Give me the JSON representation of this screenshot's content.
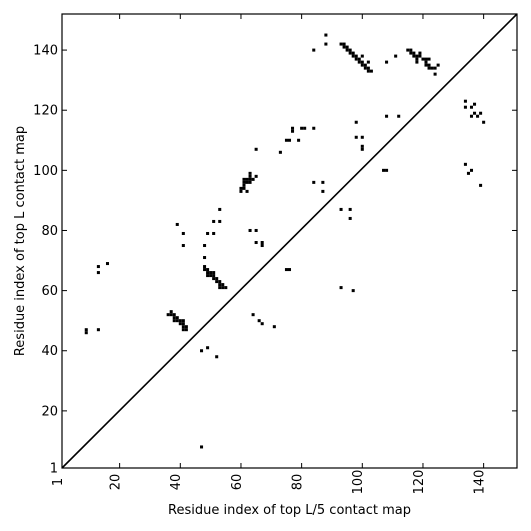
{
  "chart_data": {
    "type": "scatter",
    "xlabel": "Residue index of top L/5 contact map",
    "ylabel": "Residue index of top L contact map",
    "xlim": [
      1,
      151
    ],
    "ylim": [
      1,
      152
    ],
    "xticks": [
      "1",
      "20",
      "40",
      "60",
      "80",
      "100",
      "120",
      "140"
    ],
    "yticks": [
      "1",
      "20",
      "40",
      "60",
      "80",
      "100",
      "120",
      "140"
    ],
    "tick_values": [
      1,
      20,
      40,
      60,
      80,
      100,
      120,
      140
    ],
    "diagonal_line": {
      "from": [
        1,
        1
      ],
      "to": [
        151,
        152
      ]
    },
    "marker_color": "#000000",
    "points": [
      [
        47,
        8
      ],
      [
        9,
        46
      ],
      [
        9,
        47
      ],
      [
        13,
        47
      ],
      [
        13,
        66
      ],
      [
        13,
        68
      ],
      [
        16,
        69
      ],
      [
        36,
        52
      ],
      [
        37,
        52
      ],
      [
        37,
        53
      ],
      [
        38,
        52
      ],
      [
        38,
        51
      ],
      [
        38,
        50
      ],
      [
        39,
        50
      ],
      [
        39,
        51
      ],
      [
        40,
        50
      ],
      [
        40,
        49
      ],
      [
        41,
        49
      ],
      [
        41,
        50
      ],
      [
        41,
        48
      ],
      [
        41,
        47
      ],
      [
        42,
        47
      ],
      [
        42,
        48
      ],
      [
        39,
        82
      ],
      [
        41,
        79
      ],
      [
        41,
        75
      ],
      [
        47,
        40
      ],
      [
        49,
        41
      ],
      [
        52,
        38
      ],
      [
        48,
        75
      ],
      [
        48,
        71
      ],
      [
        49,
        79
      ],
      [
        51,
        79
      ],
      [
        51,
        83
      ],
      [
        53,
        83
      ],
      [
        53,
        87
      ],
      [
        48,
        68
      ],
      [
        48,
        67
      ],
      [
        49,
        67
      ],
      [
        49,
        66
      ],
      [
        49,
        65
      ],
      [
        50,
        66
      ],
      [
        50,
        65
      ],
      [
        51,
        65
      ],
      [
        51,
        64
      ],
      [
        51,
        66
      ],
      [
        52,
        63
      ],
      [
        52,
        64
      ],
      [
        53,
        62
      ],
      [
        53,
        63
      ],
      [
        53,
        61
      ],
      [
        54,
        62
      ],
      [
        54,
        61
      ],
      [
        55,
        61
      ],
      [
        60,
        93
      ],
      [
        60,
        94
      ],
      [
        61,
        94
      ],
      [
        61,
        95
      ],
      [
        61,
        96
      ],
      [
        61,
        97
      ],
      [
        62,
        96
      ],
      [
        62,
        97
      ],
      [
        63,
        96
      ],
      [
        63,
        97
      ],
      [
        63,
        98
      ],
      [
        63,
        99
      ],
      [
        64,
        97
      ],
      [
        62,
        93
      ],
      [
        65,
        98
      ],
      [
        65,
        107
      ],
      [
        63,
        80
      ],
      [
        65,
        80
      ],
      [
        65,
        76
      ],
      [
        67,
        75
      ],
      [
        67,
        76
      ],
      [
        64,
        52
      ],
      [
        66,
        50
      ],
      [
        67,
        49
      ],
      [
        71,
        48
      ],
      [
        73,
        106
      ],
      [
        75,
        110
      ],
      [
        76,
        110
      ],
      [
        77,
        113
      ],
      [
        77,
        114
      ],
      [
        79,
        110
      ],
      [
        80,
        114
      ],
      [
        81,
        114
      ],
      [
        84,
        114
      ],
      [
        84,
        96
      ],
      [
        87,
        96
      ],
      [
        87,
        93
      ],
      [
        75,
        67
      ],
      [
        76,
        67
      ],
      [
        84,
        140
      ],
      [
        88,
        142
      ],
      [
        88,
        145
      ],
      [
        93,
        142
      ],
      [
        94,
        141
      ],
      [
        94,
        142
      ],
      [
        95,
        140
      ],
      [
        95,
        141
      ],
      [
        96,
        139
      ],
      [
        96,
        140
      ],
      [
        97,
        138
      ],
      [
        97,
        139
      ],
      [
        98,
        137
      ],
      [
        98,
        138
      ],
      [
        99,
        136
      ],
      [
        99,
        137
      ],
      [
        100,
        135
      ],
      [
        100,
        136
      ],
      [
        101,
        134
      ],
      [
        101,
        135
      ],
      [
        102,
        133
      ],
      [
        102,
        134
      ],
      [
        103,
        133
      ],
      [
        100,
        138
      ],
      [
        102,
        136
      ],
      [
        93,
        87
      ],
      [
        96,
        87
      ],
      [
        96,
        84
      ],
      [
        93,
        61
      ],
      [
        97,
        60
      ],
      [
        98,
        116
      ],
      [
        98,
        111
      ],
      [
        100,
        111
      ],
      [
        100,
        108
      ],
      [
        100,
        107
      ],
      [
        107,
        100
      ],
      [
        108,
        100
      ],
      [
        108,
        118
      ],
      [
        108,
        136
      ],
      [
        111,
        138
      ],
      [
        112,
        118
      ],
      [
        115,
        140
      ],
      [
        116,
        139
      ],
      [
        116,
        140
      ],
      [
        117,
        139
      ],
      [
        117,
        138
      ],
      [
        118,
        138
      ],
      [
        118,
        137
      ],
      [
        118,
        136
      ],
      [
        119,
        138
      ],
      [
        119,
        139
      ],
      [
        120,
        137
      ],
      [
        121,
        137
      ],
      [
        121,
        136
      ],
      [
        121,
        135
      ],
      [
        122,
        135
      ],
      [
        122,
        134
      ],
      [
        122,
        137
      ],
      [
        123,
        134
      ],
      [
        124,
        134
      ],
      [
        124,
        132
      ],
      [
        125,
        135
      ],
      [
        134,
        123
      ],
      [
        134,
        121
      ],
      [
        134,
        102
      ],
      [
        135,
        99
      ],
      [
        136,
        100
      ],
      [
        136,
        121
      ],
      [
        136,
        118
      ],
      [
        137,
        122
      ],
      [
        137,
        119
      ],
      [
        138,
        118
      ],
      [
        139,
        119
      ],
      [
        139,
        95
      ],
      [
        140,
        116
      ]
    ]
  }
}
